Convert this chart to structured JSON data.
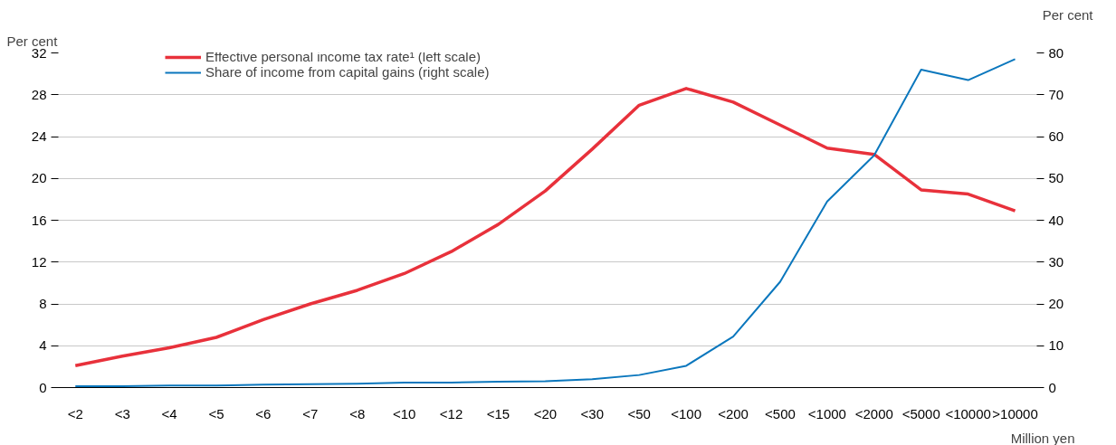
{
  "chart_data": {
    "type": "line",
    "ylabel": "Per cent",
    "y2label": "Per cent",
    "xlabel": "Million yen",
    "categories": [
      "<2",
      "<3",
      "<4",
      "<5",
      "<6",
      "<7",
      "<8",
      "<10",
      "<12",
      "<15",
      "<20",
      "<30",
      "<50",
      "<100",
      "<200",
      "<500",
      "<1000",
      "<2000",
      "<5000",
      "<10000",
      ">10000"
    ],
    "series": [
      {
        "name": "Effective personal income tax rate¹ (left scale)",
        "color": "#e8313b",
        "values": [
          2.1,
          3.0,
          3.8,
          4.8,
          6.5,
          8.0,
          9.3,
          10.9,
          13.0,
          15.6,
          18.8,
          22.8,
          27.0,
          28.6,
          27.3,
          25.1,
          22.9,
          22.3,
          18.9,
          18.5,
          16.9
        ]
      },
      {
        "name": "Share of income from capital gains (right scale)",
        "color": "#0b77bd",
        "axis": "y2",
        "values": [
          0.3,
          0.3,
          0.5,
          0.5,
          0.7,
          0.8,
          0.9,
          1.2,
          1.2,
          1.4,
          1.5,
          2.0,
          3.0,
          5.2,
          12.2,
          25.3,
          44.5,
          55.5,
          76.0,
          73.5,
          78.5
        ]
      }
    ],
    "ylim": [
      0,
      32
    ],
    "yticks": [
      0,
      4,
      8,
      12,
      16,
      20,
      24,
      28,
      32
    ],
    "y2lim": [
      0,
      80
    ],
    "y2ticks": [
      0,
      10,
      20,
      30,
      40,
      50,
      60,
      70,
      80
    ],
    "grid": "y",
    "legend": "top left",
    "marker": "none",
    "line_style": "solid"
  }
}
